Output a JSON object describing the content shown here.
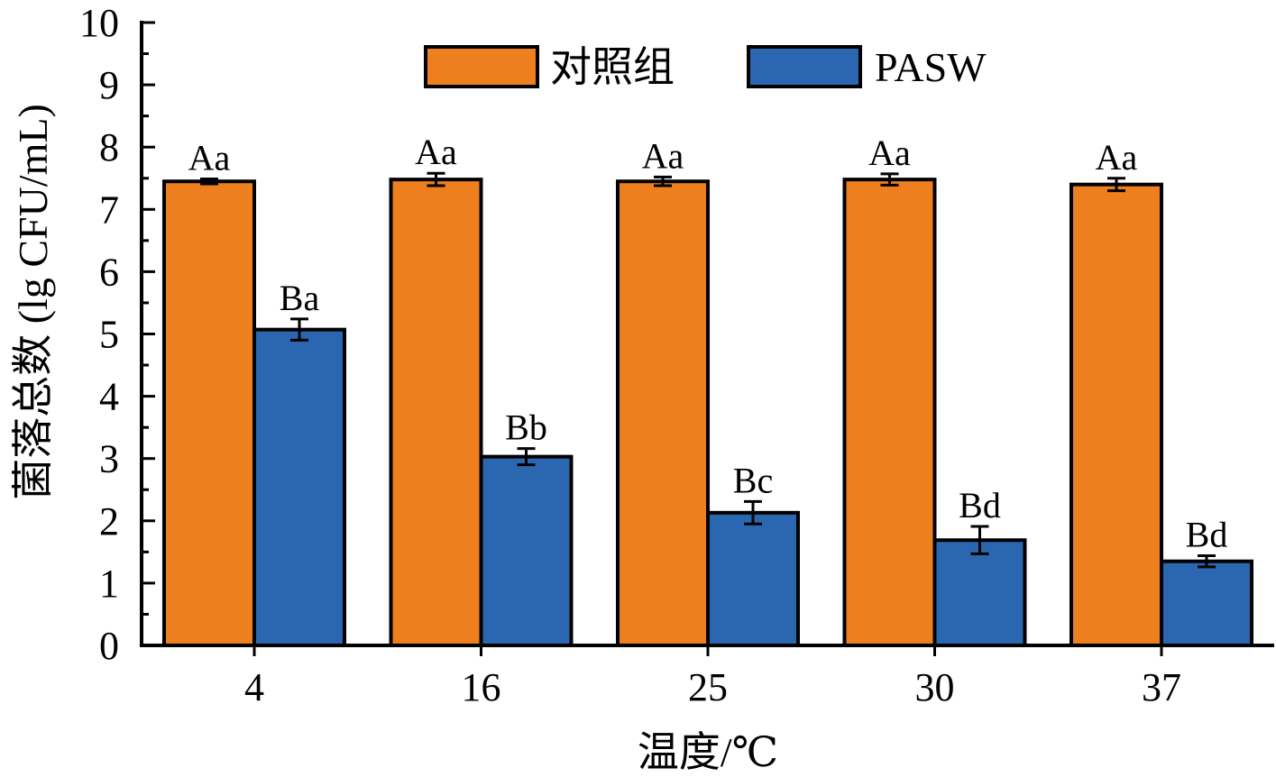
{
  "chart_data": {
    "type": "bar",
    "xlabel": "温度/℃",
    "ylabel": "菌落总数 (lg CFU/mL)",
    "ylim": [
      0,
      10
    ],
    "yticks": [
      "0",
      "1",
      "2",
      "3",
      "4",
      "5",
      "6",
      "7",
      "8",
      "9",
      "10"
    ],
    "categories": [
      "4",
      "16",
      "25",
      "30",
      "37"
    ],
    "legend_position": "top",
    "series": [
      {
        "name": "对照组",
        "color": "#EE7F1F",
        "values": [
          7.45,
          7.48,
          7.45,
          7.48,
          7.4
        ],
        "errors": [
          0.04,
          0.1,
          0.07,
          0.09,
          0.1
        ],
        "labels": [
          "Aa",
          "Aa",
          "Aa",
          "Aa",
          "Aa"
        ]
      },
      {
        "name": "PASW",
        "color": "#2B67B1",
        "values": [
          5.07,
          3.03,
          2.13,
          1.69,
          1.35
        ],
        "errors": [
          0.17,
          0.13,
          0.18,
          0.22,
          0.09
        ],
        "labels": [
          "Ba",
          "Bb",
          "Bc",
          "Bd",
          "Bd"
        ]
      }
    ]
  }
}
